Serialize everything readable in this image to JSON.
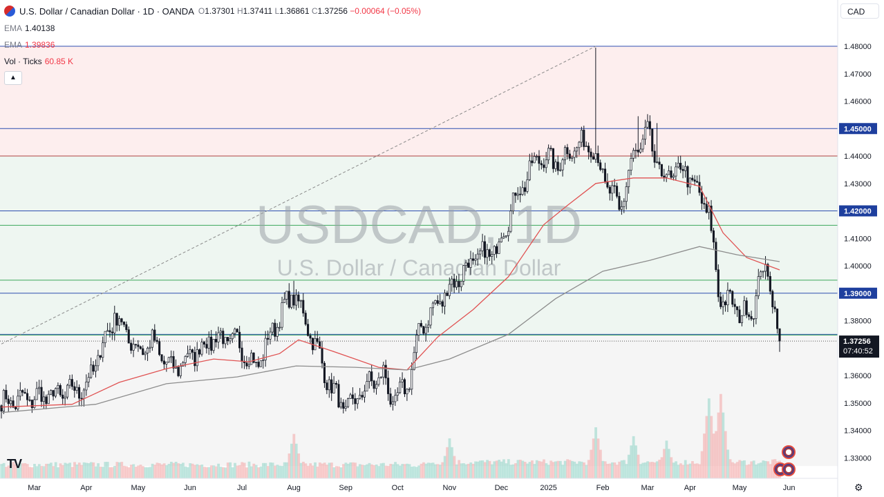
{
  "header": {
    "title": "U.S. Dollar / Canadian Dollar · 1D · OANDA",
    "open": "1.37301",
    "high": "1.37411",
    "low": "1.36861",
    "close": "1.37256",
    "change": "−0.00064 (−0.05%)"
  },
  "indicators": [
    {
      "label": "EMA",
      "value": "1.40138"
    },
    {
      "label": "EMA",
      "value": "1.39836"
    },
    {
      "label": "Vol · Ticks",
      "value": "60.85 K"
    }
  ],
  "currency_button": "CAD",
  "collapse_icon": "chevron-up-icon",
  "watermark": {
    "symbol": "USDCAD, 1D",
    "description": "U.S. Dollar / Canadian Dollar"
  },
  "last_price": {
    "value": "1.37256",
    "countdown": "07:40:52",
    "color": "#131722"
  },
  "tv_logo": "TV",
  "chart_data": {
    "type": "candlestick",
    "x_tick_labels": [
      "Mar",
      "Apr",
      "May",
      "Jun",
      "Jul",
      "Aug",
      "Sep",
      "Oct",
      "Nov",
      "Dec",
      "2025",
      "Feb",
      "Mar",
      "Apr",
      "May",
      "Jun"
    ],
    "x_tick_index": [
      14,
      36,
      58,
      80,
      102,
      124,
      146,
      168,
      190,
      212,
      232,
      255,
      274,
      292,
      313,
      334
    ],
    "y_tick_labels": [
      "1.48000",
      "1.47000",
      "1.46000",
      "1.45000",
      "1.44000",
      "1.43000",
      "1.42000",
      "1.41000",
      "1.40000",
      "1.39000",
      "1.38000",
      "1.37256",
      "1.36000",
      "1.35000",
      "1.34000",
      "1.33000"
    ],
    "ylim": [
      1.327,
      1.484
    ],
    "highlighted_levels": [
      "1.45000",
      "1.42000",
      "1.39000"
    ],
    "levels": {
      "blue": [
        1.48,
        1.45,
        1.42,
        1.39,
        1.375
      ],
      "green": [
        1.415,
        1.395,
        1.375
      ],
      "red": [
        1.44
      ]
    },
    "zones": [
      {
        "from": 1.44,
        "to": 1.48,
        "color": "#fdeeee"
      },
      {
        "from": 1.375,
        "to": 1.44,
        "color": "#eef6f1"
      },
      {
        "from": 1.327,
        "to": 1.375,
        "color": "#f5f5f5"
      }
    ],
    "trendline": {
      "from": [
        0,
        1.3715
      ],
      "to": [
        252,
        1.48
      ]
    },
    "ema_fast": [
      [
        0,
        1.3485
      ],
      [
        30,
        1.3495
      ],
      [
        50,
        1.3575
      ],
      [
        70,
        1.3625
      ],
      [
        90,
        1.366
      ],
      [
        105,
        1.365
      ],
      [
        118,
        1.368
      ],
      [
        126,
        1.373
      ],
      [
        140,
        1.369
      ],
      [
        160,
        1.363
      ],
      [
        172,
        1.362
      ],
      [
        185,
        1.374
      ],
      [
        200,
        1.384
      ],
      [
        215,
        1.396
      ],
      [
        230,
        1.415
      ],
      [
        240,
        1.422
      ],
      [
        252,
        1.43
      ],
      [
        268,
        1.432
      ],
      [
        282,
        1.432
      ],
      [
        296,
        1.429
      ],
      [
        306,
        1.412
      ],
      [
        316,
        1.403
      ],
      [
        330,
        1.3985
      ]
    ],
    "ema_slow": [
      [
        0,
        1.3465
      ],
      [
        40,
        1.3495
      ],
      [
        70,
        1.357
      ],
      [
        100,
        1.3595
      ],
      [
        125,
        1.3635
      ],
      [
        150,
        1.363
      ],
      [
        172,
        1.362
      ],
      [
        190,
        1.366
      ],
      [
        215,
        1.375
      ],
      [
        235,
        1.388
      ],
      [
        255,
        1.398
      ],
      [
        275,
        1.402
      ],
      [
        296,
        1.407
      ],
      [
        312,
        1.404
      ],
      [
        330,
        1.4015
      ]
    ],
    "candles": {
      "count": 331,
      "start_close": 1.35,
      "path_anchors": [
        [
          0,
          1.35
        ],
        [
          15,
          1.352
        ],
        [
          25,
          1.353
        ],
        [
          36,
          1.356
        ],
        [
          48,
          1.382
        ],
        [
          58,
          1.369
        ],
        [
          64,
          1.372
        ],
        [
          72,
          1.362
        ],
        [
          80,
          1.367
        ],
        [
          90,
          1.374
        ],
        [
          100,
          1.372
        ],
        [
          108,
          1.363
        ],
        [
          118,
          1.382
        ],
        [
          124,
          1.39
        ],
        [
          130,
          1.378
        ],
        [
          140,
          1.355
        ],
        [
          146,
          1.347
        ],
        [
          156,
          1.357
        ],
        [
          162,
          1.36
        ],
        [
          166,
          1.35
        ],
        [
          172,
          1.356
        ],
        [
          178,
          1.378
        ],
        [
          190,
          1.392
        ],
        [
          200,
          1.402
        ],
        [
          210,
          1.406
        ],
        [
          218,
          1.425
        ],
        [
          228,
          1.44
        ],
        [
          236,
          1.437
        ],
        [
          242,
          1.443
        ],
        [
          250,
          1.445
        ],
        [
          254,
          1.435
        ],
        [
          262,
          1.42
        ],
        [
          268,
          1.44
        ],
        [
          274,
          1.448
        ],
        [
          280,
          1.432
        ],
        [
          290,
          1.435
        ],
        [
          296,
          1.425
        ],
        [
          300,
          1.42
        ],
        [
          304,
          1.39
        ],
        [
          312,
          1.384
        ],
        [
          318,
          1.382
        ],
        [
          322,
          1.398
        ],
        [
          326,
          1.395
        ],
        [
          330,
          1.3726
        ]
      ],
      "spikes": [
        [
          124,
          1.3945
        ],
        [
          252,
          1.4795
        ],
        [
          270,
          1.4545
        ],
        [
          278,
          1.452
        ]
      ]
    },
    "volume": {
      "count": 331,
      "spike_bars": [
        [
          124,
          1.0
        ],
        [
          190,
          0.9
        ],
        [
          252,
          1.15
        ],
        [
          268,
          0.95
        ],
        [
          282,
          0.85
        ],
        [
          300,
          1.8
        ],
        [
          305,
          1.9
        ]
      ]
    }
  }
}
